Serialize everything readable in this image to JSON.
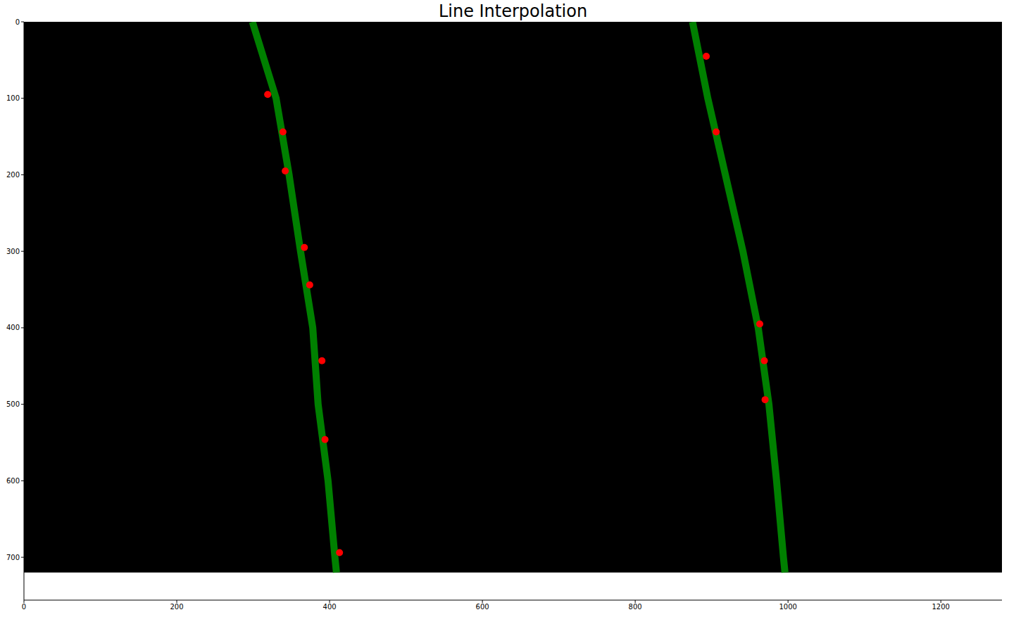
{
  "chart_data": {
    "type": "scatter",
    "title": "Line Interpolation",
    "image_size": [
      1280,
      720
    ],
    "xlim": [
      0,
      1280
    ],
    "xticks": [
      0,
      200,
      400,
      600,
      800,
      1000,
      1200
    ],
    "ylim": [
      756,
      0
    ],
    "yticks": [
      0,
      100,
      200,
      300,
      400,
      500,
      600,
      700
    ],
    "series": [
      {
        "type": "line",
        "color": "#008000",
        "x": [
          299,
          330,
          347,
          362,
          378,
          385,
          398,
          407,
          409
        ],
        "y": [
          0,
          100,
          200,
          300,
          400,
          500,
          600,
          700,
          720
        ]
      },
      {
        "type": "line",
        "color": "#008000",
        "x": [
          875,
          895,
          918,
          941,
          961,
          975,
          985,
          994,
          996
        ],
        "y": [
          0,
          100,
          200,
          300,
          400,
          500,
          600,
          700,
          720
        ]
      },
      {
        "type": "scatter",
        "marker": "circle",
        "color": "#ff0000",
        "x": [
          319,
          339,
          342,
          367,
          374,
          390,
          394,
          413,
          893,
          906,
          963,
          969,
          970
        ],
        "y": [
          95,
          144,
          195,
          295,
          344,
          443,
          546,
          694,
          45,
          144,
          395,
          443,
          494
        ]
      }
    ]
  }
}
